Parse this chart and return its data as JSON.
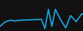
{
  "x": [
    0,
    8,
    15,
    22,
    30,
    60,
    65,
    70,
    75,
    80,
    88,
    95,
    102,
    110,
    118,
    120
  ],
  "y": [
    6,
    12,
    14,
    13,
    14,
    15,
    3,
    28,
    6,
    28,
    14,
    4,
    20,
    12,
    22,
    22
  ],
  "line_color": "#1b9fd5",
  "line_width": 1.4,
  "background_color": "#111111",
  "xlim": [
    0,
    120
  ],
  "ylim": [
    0,
    40
  ]
}
